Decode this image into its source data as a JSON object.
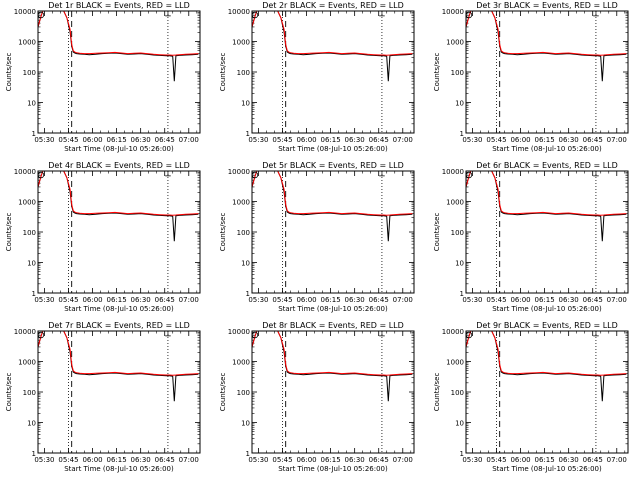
{
  "chart_data": [
    {
      "type": "line",
      "title": "Det 1r BLACK = Events, RED = LLD"
    },
    {
      "type": "line",
      "title": "Det 2r BLACK = Events, RED = LLD"
    },
    {
      "type": "line",
      "title": "Det 3r BLACK = Events, RED = LLD"
    },
    {
      "type": "line",
      "title": "Det 4r BLACK = Events, RED = LLD"
    },
    {
      "type": "line",
      "title": "Det 5r BLACK = Events, RED = LLD"
    },
    {
      "type": "line",
      "title": "Det 6r BLACK = Events, RED = LLD"
    },
    {
      "type": "line",
      "title": "Det 7r BLACK = Events, RED = LLD"
    },
    {
      "type": "line",
      "title": "Det 8r BLACK = Events, RED = LLD"
    },
    {
      "type": "line",
      "title": "Det 9r BLACK = Events, RED = LLD"
    }
  ],
  "common": {
    "ylabel": "Counts/sec",
    "xlabel": "Start Time (08-Jul-10 05:26:00)",
    "yscale": "log",
    "ylim": [
      1,
      10000
    ],
    "ytick_labels": [
      "1",
      "10",
      "100",
      "1000",
      "10000"
    ],
    "ytick_values": [
      1,
      10,
      100,
      1000,
      10000
    ],
    "xtick_labels": [
      "05:30",
      "05:45",
      "06:00",
      "06:15",
      "06:30",
      "06:45",
      "07:00"
    ],
    "xtick_minutes": [
      30,
      45,
      60,
      75,
      90,
      105,
      120
    ],
    "xlim_minutes": [
      26,
      127
    ],
    "series_colors": {
      "events": "#000000",
      "lld": "#ff0000"
    },
    "events_x_minutes": [
      26,
      28,
      29,
      30,
      31,
      36,
      42,
      44,
      46,
      47,
      48,
      49,
      50,
      52,
      55,
      58,
      62,
      66,
      70,
      74,
      78,
      82,
      86,
      90,
      94,
      98,
      102,
      106,
      108,
      110,
      111,
      112,
      114,
      118,
      122,
      126
    ],
    "events_y": [
      3000,
      7000,
      10000,
      10000,
      10000,
      10000,
      10000,
      6000,
      2000,
      700,
      450,
      420,
      400,
      390,
      380,
      370,
      380,
      400,
      410,
      420,
      400,
      380,
      390,
      400,
      380,
      360,
      350,
      340,
      340,
      330,
      50,
      340,
      350,
      360,
      370,
      380
    ],
    "lld_x_minutes": [
      26,
      28,
      29,
      30,
      31,
      36,
      42,
      44,
      46,
      47,
      48,
      49,
      50,
      52,
      55,
      58,
      62,
      66,
      70,
      74,
      78,
      82,
      86,
      90,
      94,
      98,
      102,
      106,
      108,
      110,
      112,
      114,
      118,
      122,
      126
    ],
    "lld_y": [
      3000,
      7000,
      10000,
      10000,
      10000,
      10000,
      10000,
      6000,
      2500,
      800,
      500,
      450,
      430,
      410,
      400,
      400,
      410,
      420,
      430,
      440,
      420,
      400,
      410,
      420,
      400,
      380,
      370,
      360,
      360,
      355,
      360,
      370,
      380,
      390,
      400
    ],
    "vertical_markers_minutes": {
      "dotted": [
        45,
        107
      ],
      "dashed": [
        47
      ]
    },
    "marker_glyph": "┴"
  }
}
